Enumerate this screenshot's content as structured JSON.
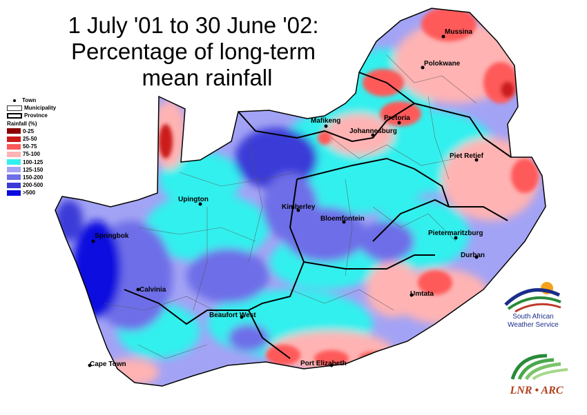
{
  "title": {
    "line1": "1 July '01 to 30 June '02:",
    "line2": "Percentage of long-term",
    "line3": "mean rainfall"
  },
  "legend": {
    "town": "Town",
    "municipality": "Municipality",
    "province": "Province",
    "rainfall_heading": "Rainfall (%)",
    "classes": [
      {
        "label": "0-25",
        "color": "#8b0000"
      },
      {
        "label": "25-50",
        "color": "#cc1a1a"
      },
      {
        "label": "50-75",
        "color": "#ff5a5a"
      },
      {
        "label": "75-100",
        "color": "#ffb3b3"
      },
      {
        "label": "100-125",
        "color": "#33f0ee"
      },
      {
        "label": "125-150",
        "color": "#a3a3f5"
      },
      {
        "label": "150-200",
        "color": "#6e6ee8"
      },
      {
        "label": "200-500",
        "color": "#3a3ad8"
      },
      {
        "label": ">500",
        "color": "#0a0adf"
      }
    ]
  },
  "towns": [
    {
      "name": "Mussina"
    },
    {
      "name": "Polokwane"
    },
    {
      "name": "Mafikeng"
    },
    {
      "name": "Pretoria"
    },
    {
      "name": "Johannesburg"
    },
    {
      "name": "Piet Retief"
    },
    {
      "name": "Upington"
    },
    {
      "name": "Kimberley"
    },
    {
      "name": "Bloemfontein"
    },
    {
      "name": "Springbok"
    },
    {
      "name": "Pietermaritzburg"
    },
    {
      "name": "Durban"
    },
    {
      "name": "Calvinia"
    },
    {
      "name": "Umtata"
    },
    {
      "name": "Beaufort West"
    },
    {
      "name": "Cape Town"
    },
    {
      "name": "Port Elizabeth"
    }
  ],
  "logos": {
    "saws_line1": "South African",
    "saws_line2": "Weather Service",
    "arc": "LNR • ARC"
  }
}
